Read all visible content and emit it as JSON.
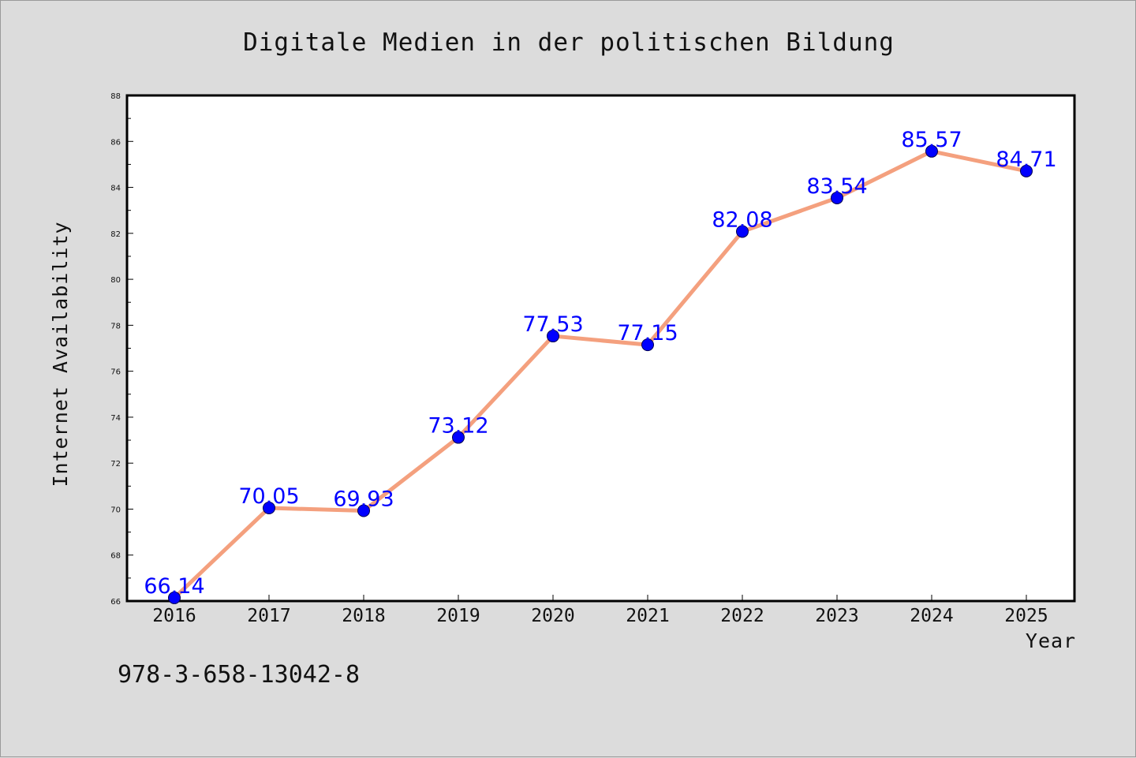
{
  "colors": {
    "background": "#dcdcdc",
    "plot_area": "#ffffff",
    "line": "#f4a07e",
    "marker": "#0000ff",
    "data_label": "#0000ff"
  },
  "footer_text": "978-3-658-13042-8",
  "chart_data": {
    "type": "line",
    "title": "Digitale Medien in der politischen Bildung",
    "xlabel": "Year",
    "ylabel": "Internet Availability",
    "categories": [
      "2016",
      "2017",
      "2018",
      "2019",
      "2020",
      "2021",
      "2022",
      "2023",
      "2024",
      "2025"
    ],
    "series": [
      {
        "values": [
          66.14,
          70.05,
          69.93,
          73.12,
          77.53,
          77.15,
          82.08,
          83.54,
          85.57,
          84.71
        ],
        "data_labels": [
          "66.14",
          "70.05",
          "69.93",
          "73.12",
          "77.53",
          "77.15",
          "82.08",
          "83.54",
          "85.57",
          "84.71"
        ]
      }
    ],
    "ylim": [
      66,
      88
    ],
    "yticks": [
      66,
      68,
      70,
      72,
      74,
      76,
      78,
      80,
      82,
      84,
      86,
      88
    ],
    "grid": false,
    "legend": "none"
  }
}
